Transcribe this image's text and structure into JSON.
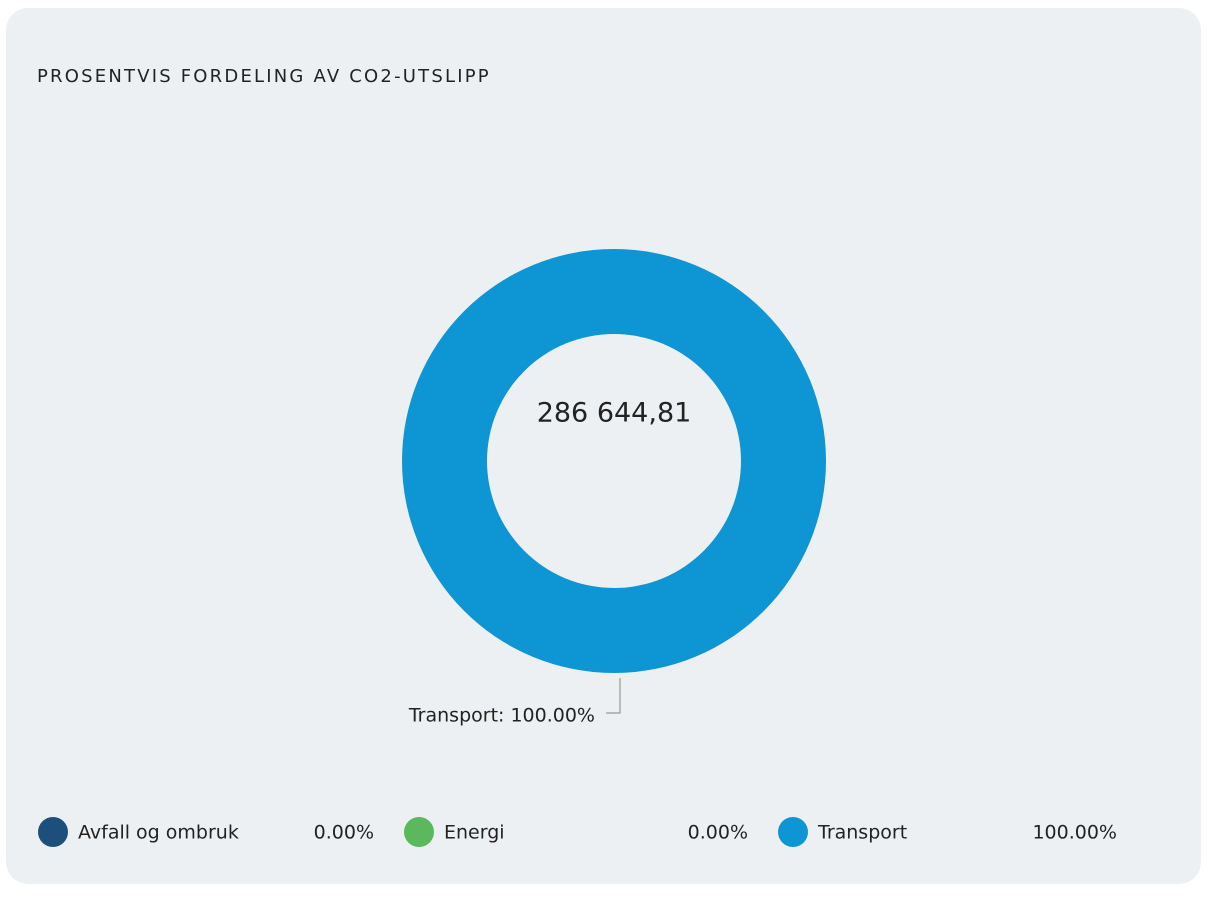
{
  "chart_data": {
    "type": "donut",
    "title": "PROSENTVIS FORDELING AV CO2-UTSLIPP",
    "center_label": "286 644,81",
    "categories": [
      "Avfall og ombruk",
      "Energi",
      "Transport"
    ],
    "values": [
      0,
      0,
      100
    ],
    "value_labels": [
      "0.00%",
      "0.00%",
      "100.00%"
    ],
    "colors": [
      "#1c4f7c",
      "#5cb85c",
      "#0e95d3"
    ],
    "annotations": [
      {
        "text": "Transport: 100.00%",
        "category": 2
      }
    ],
    "legend": "bottom"
  }
}
